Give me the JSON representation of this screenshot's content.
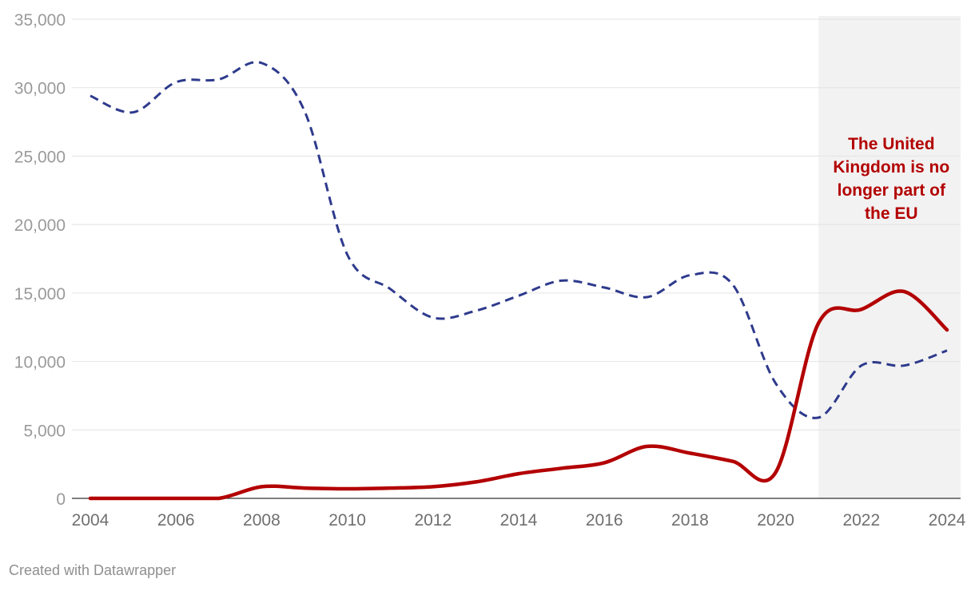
{
  "chart_data": {
    "type": "line",
    "x": [
      2004,
      2005,
      2006,
      2007,
      2008,
      2009,
      2010,
      2011,
      2012,
      2013,
      2014,
      2015,
      2016,
      2017,
      2018,
      2019,
      2020,
      2021,
      2022,
      2023,
      2024
    ],
    "series": [
      {
        "name": "dashed-series",
        "style": "dashed",
        "color": "#2e3a8c",
        "values": [
          29400,
          28200,
          30400,
          30600,
          31800,
          28300,
          17800,
          15300,
          13200,
          13700,
          14800,
          15900,
          15400,
          14700,
          16300,
          15600,
          8400,
          5900,
          9700,
          9700,
          10800
        ]
      },
      {
        "name": "solid-series",
        "style": "solid",
        "color": "#b30000",
        "values": [
          0,
          0,
          0,
          0,
          850,
          750,
          700,
          750,
          850,
          1200,
          1800,
          2200,
          2600,
          3800,
          3300,
          2700,
          1900,
          12800,
          13800,
          15100,
          12300
        ]
      }
    ],
    "ylim": [
      0,
      35000
    ],
    "xlim": [
      2004,
      2024
    ],
    "yticks": [
      "0",
      "5,000",
      "10,000",
      "15,000",
      "20,000",
      "25,000",
      "30,000",
      "35,000"
    ],
    "ytick_values": [
      0,
      5000,
      10000,
      15000,
      20000,
      25000,
      30000,
      35000
    ],
    "xticks": [
      "2004",
      "2006",
      "2008",
      "2010",
      "2012",
      "2014",
      "2016",
      "2018",
      "2020",
      "2022",
      "2024"
    ],
    "xtick_values": [
      2004,
      2006,
      2008,
      2010,
      2012,
      2014,
      2016,
      2018,
      2020,
      2022,
      2024
    ],
    "shaded_region": {
      "from": 2021,
      "to": 2024
    },
    "annotation": {
      "lines": [
        "The United",
        "Kingdom is no",
        "longer part of",
        "the EU"
      ],
      "x": 2022.7,
      "color": "#b30000"
    },
    "grid": true,
    "colors": {
      "grid": "#e3e3e3",
      "shade": "#f2f2f2",
      "axis": "#333333"
    }
  },
  "footer": "Created with Datawrapper"
}
